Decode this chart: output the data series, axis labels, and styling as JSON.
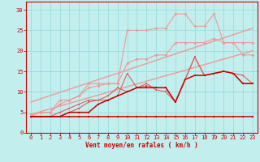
{
  "xlabel": "Vent moyen/en rafales ( km/h )",
  "xlim": [
    -0.5,
    23.5
  ],
  "ylim": [
    0,
    32
  ],
  "yticks": [
    0,
    5,
    10,
    15,
    20,
    25,
    30
  ],
  "xticks": [
    0,
    1,
    2,
    3,
    4,
    5,
    6,
    7,
    8,
    9,
    10,
    11,
    12,
    13,
    14,
    15,
    16,
    17,
    18,
    19,
    20,
    21,
    22,
    23
  ],
  "bg_color": "#c2eeee",
  "grid_color": "#99dddd",
  "dc": "#cc0000",
  "mc": "#e06060",
  "lc": "#ee9999",
  "line_dark_flat": {
    "x": [
      0,
      1,
      2,
      3,
      4,
      5,
      6,
      7,
      8,
      9,
      10,
      11,
      12,
      13,
      14,
      15,
      16,
      17,
      18,
      19,
      20,
      21,
      22,
      23
    ],
    "y": [
      4,
      4,
      4,
      4,
      4,
      4,
      4,
      4,
      4,
      4,
      4,
      4,
      4,
      4,
      4,
      4,
      4,
      4,
      4,
      4,
      4,
      4,
      4,
      4
    ]
  },
  "line_dark_main": {
    "x": [
      0,
      1,
      2,
      3,
      4,
      5,
      6,
      7,
      8,
      9,
      10,
      11,
      12,
      13,
      14,
      15,
      16,
      17,
      18,
      19,
      20,
      21,
      22,
      23
    ],
    "y": [
      4,
      4,
      4,
      4,
      5,
      5,
      5,
      7,
      8,
      9,
      10,
      11,
      11,
      11,
      11,
      7.5,
      13,
      14,
      14,
      14.5,
      15,
      14.5,
      12,
      12
    ]
  },
  "line_mid1": {
    "x": [
      0,
      1,
      2,
      3,
      4,
      5,
      6,
      7,
      8,
      9,
      10,
      11,
      12,
      13,
      14,
      15,
      16,
      17,
      18,
      19,
      20,
      21,
      22,
      23
    ],
    "y": [
      4,
      4,
      4,
      4,
      5,
      6,
      7.5,
      8,
      8,
      9,
      14.5,
      11,
      11.5,
      11,
      11,
      7.5,
      13,
      18.5,
      14,
      14.5,
      15,
      14.5,
      12,
      12
    ]
  },
  "line_mid2": {
    "x": [
      0,
      1,
      2,
      3,
      4,
      5,
      6,
      7,
      8,
      9,
      10,
      11,
      12,
      13,
      14,
      15,
      16,
      17,
      18,
      19,
      20,
      21,
      22,
      23
    ],
    "y": [
      4,
      4,
      4,
      5,
      6,
      7,
      8,
      8,
      9,
      11,
      10,
      11,
      12,
      10.5,
      10,
      7.5,
      13,
      18.5,
      14,
      14.5,
      15,
      14.5,
      14,
      12
    ]
  },
  "line_light1": {
    "x": [
      0,
      1,
      2,
      3,
      4,
      5,
      6,
      7,
      8,
      9,
      10,
      11,
      12,
      13,
      14,
      15,
      16,
      17,
      18,
      19,
      20,
      21,
      22,
      23
    ],
    "y": [
      4.5,
      5,
      5,
      7,
      8,
      9,
      11,
      11.5,
      12,
      12,
      17,
      18,
      18,
      19,
      19,
      22,
      22,
      22,
      22,
      23,
      22,
      22,
      22,
      22
    ]
  },
  "line_light2": {
    "x": [
      0,
      1,
      2,
      3,
      4,
      5,
      6,
      7,
      8,
      9,
      10,
      11,
      12,
      13,
      14,
      15,
      16,
      17,
      18,
      19,
      20,
      21,
      22,
      23
    ],
    "y": [
      4,
      5,
      5,
      8,
      8,
      9,
      12,
      12,
      12,
      12,
      25,
      25,
      25,
      25.5,
      25.5,
      29,
      29,
      26,
      26,
      29,
      22,
      22,
      19,
      19
    ]
  },
  "trend1": {
    "x": [
      0,
      23
    ],
    "y": [
      4.5,
      20
    ]
  },
  "trend2": {
    "x": [
      0,
      23
    ],
    "y": [
      7.5,
      25.5
    ]
  }
}
